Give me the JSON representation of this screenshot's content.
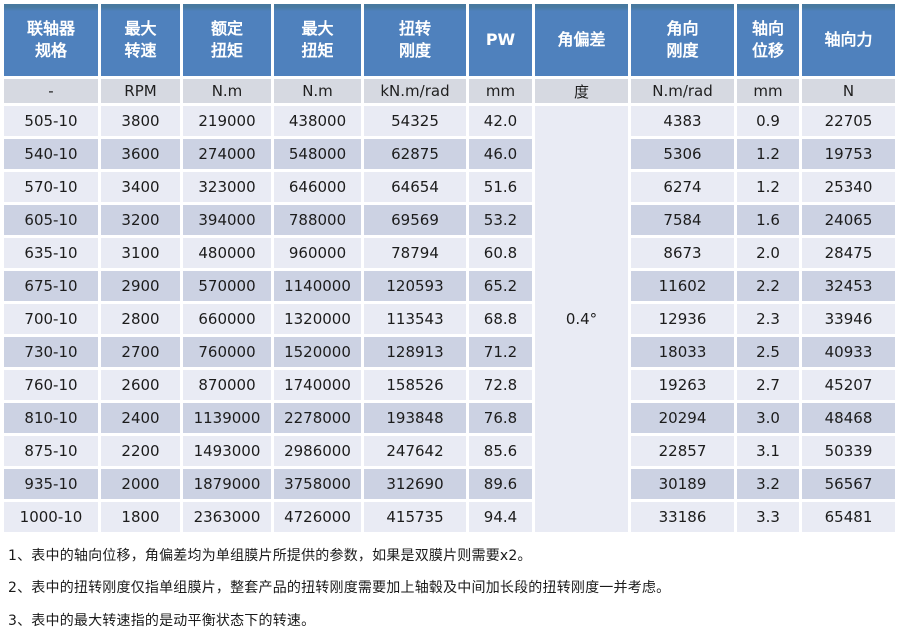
{
  "table": {
    "headers": [
      "联轴器\n规格",
      "最大\n转速",
      "额定\n扭矩",
      "最大\n扭矩",
      "扭转\n刚度",
      "PW",
      "角偏差",
      "角向\n刚度",
      "轴向\n位移",
      "轴向力"
    ],
    "units": [
      "-",
      "RPM",
      "N.m",
      "N.m",
      "kN.m/rad",
      "mm",
      "度",
      "N.m/rad",
      "mm",
      "N"
    ],
    "angular_deviation_value": "0.4°",
    "rows": [
      [
        "505-10",
        "3800",
        "219000",
        "438000",
        "54325",
        "42.0",
        "4383",
        "0.9",
        "22705"
      ],
      [
        "540-10",
        "3600",
        "274000",
        "548000",
        "62875",
        "46.0",
        "5306",
        "1.2",
        "19753"
      ],
      [
        "570-10",
        "3400",
        "323000",
        "646000",
        "64654",
        "51.6",
        "6274",
        "1.2",
        "25340"
      ],
      [
        "605-10",
        "3200",
        "394000",
        "788000",
        "69569",
        "53.2",
        "7584",
        "1.6",
        "24065"
      ],
      [
        "635-10",
        "3100",
        "480000",
        "960000",
        "78794",
        "60.8",
        "8673",
        "2.0",
        "28475"
      ],
      [
        "675-10",
        "2900",
        "570000",
        "1140000",
        "120593",
        "65.2",
        "11602",
        "2.2",
        "32453"
      ],
      [
        "700-10",
        "2800",
        "660000",
        "1320000",
        "113543",
        "68.8",
        "12936",
        "2.3",
        "33946"
      ],
      [
        "730-10",
        "2700",
        "760000",
        "1520000",
        "128913",
        "71.2",
        "18033",
        "2.5",
        "40933"
      ],
      [
        "760-10",
        "2600",
        "870000",
        "1740000",
        "158526",
        "72.8",
        "19263",
        "2.7",
        "45207"
      ],
      [
        "810-10",
        "2400",
        "1139000",
        "2278000",
        "193848",
        "76.8",
        "20294",
        "3.0",
        "48468"
      ],
      [
        "875-10",
        "2200",
        "1493000",
        "2986000",
        "247642",
        "85.6",
        "22857",
        "3.1",
        "50339"
      ],
      [
        "935-10",
        "2000",
        "1879000",
        "3758000",
        "312690",
        "89.6",
        "30189",
        "3.2",
        "56567"
      ],
      [
        "1000-10",
        "1800",
        "2363000",
        "4726000",
        "415735",
        "94.4",
        "33186",
        "3.3",
        "65481"
      ]
    ]
  },
  "notes": [
    "1、表中的轴向位移，角偏差均为单组膜片所提供的参数，如果是双膜片则需要x2。",
    "2、表中的扭转刚度仅指单组膜片，整套产品的扭转刚度需要加上轴毂及中间加长段的扭转刚度一并考虑。",
    "3、表中的最大转速指的是动平衡状态下的转速。"
  ],
  "colors": {
    "header_bg": "#4f81bd",
    "header_text": "#ffffff",
    "unit_row_bg": "#d6d9e1",
    "row_light_bg": "#e9ebf4",
    "row_dark_bg": "#ccd2e3",
    "merged_cell_bg": "#e5e8f1",
    "body_text": "#1c1c1c"
  }
}
